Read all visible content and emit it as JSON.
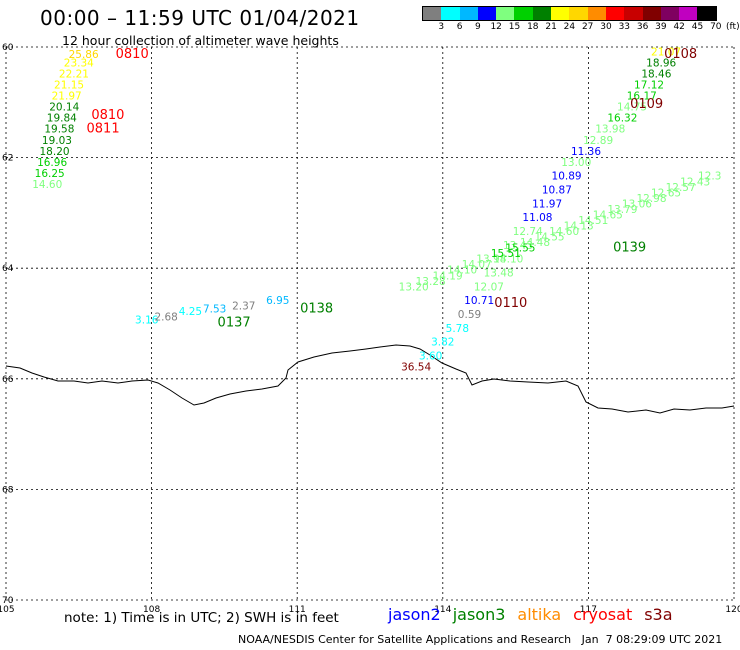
{
  "header": {
    "title": "00:00 – 11:59 UTC 01/04/2021",
    "subtitle": "12 hour collection of altimeter wave heights"
  },
  "colorbar": {
    "unit": "(ft)",
    "colors": [
      "#7f7f7f",
      "#00ffff",
      "#00b8ff",
      "#0000ff",
      "#7fff7f",
      "#00d000",
      "#008000",
      "#ffff00",
      "#ffd700",
      "#ff8c00",
      "#ff0000",
      "#c80000",
      "#800000",
      "#7f0060",
      "#c000c0",
      "#000000"
    ],
    "labels": [
      "3",
      "6",
      "9",
      "12",
      "15",
      "18",
      "21",
      "24",
      "27",
      "30",
      "33",
      "36",
      "39",
      "42",
      "45",
      "70"
    ]
  },
  "axes": {
    "y_ticks": [
      "60",
      "62",
      "64",
      "66",
      "68",
      "70"
    ],
    "x_ticks": [
      "105",
      "108",
      "111",
      "114",
      "117",
      "120"
    ]
  },
  "footer": {
    "note": "note: 1) Time is in UTC; 2) SWH is in feet",
    "credit": "NOAA/NESDIS Center for Satellite Applications and Research   Jan  7 08:29:09 UTC 2021"
  },
  "legend": [
    {
      "name": "jason2",
      "color": "#0000ff"
    },
    {
      "name": "jason3",
      "color": "#008000"
    },
    {
      "name": "altika",
      "color": "#ff8c00"
    },
    {
      "name": "cryosat",
      "color": "#ff0000"
    },
    {
      "name": "s3a",
      "color": "#800000"
    }
  ],
  "chart_data": {
    "type": "scatter",
    "title": "00:00 – 11:59 UTC 01/04/2021",
    "subtitle": "12 hour collection of altimeter wave heights",
    "xlim": [
      105,
      120
    ],
    "ylim": [
      60,
      70
    ],
    "y_inverted": true,
    "grid": true,
    "legend_position": "bottom",
    "colormap": "value-to-color by colorbar breakpoints",
    "pass_labels": [
      {
        "text": "0810",
        "lon": 107.6,
        "lat": 60.2,
        "color": "#ff0000"
      },
      {
        "text": "0810",
        "lon": 107.1,
        "lat": 61.3,
        "color": "#ff0000"
      },
      {
        "text": "0811",
        "lon": 107.0,
        "lat": 61.55,
        "color": "#ff0000"
      },
      {
        "text": "0108",
        "lon": 118.9,
        "lat": 60.2,
        "color": "#800000"
      },
      {
        "text": "0109",
        "lon": 118.2,
        "lat": 61.1,
        "color": "#800000"
      },
      {
        "text": "0139",
        "lon": 117.85,
        "lat": 63.7,
        "color": "#008000"
      },
      {
        "text": "0110",
        "lon": 115.4,
        "lat": 64.7,
        "color": "#800000"
      },
      {
        "text": "0137",
        "lon": 109.7,
        "lat": 65.05,
        "color": "#008000"
      },
      {
        "text": "0138",
        "lon": 111.4,
        "lat": 64.8,
        "color": "#008000"
      }
    ],
    "points": [
      {
        "lon": 106.6,
        "lat": 60.2,
        "value": 25.86
      },
      {
        "lon": 106.5,
        "lat": 60.35,
        "value": 23.34
      },
      {
        "lon": 106.4,
        "lat": 60.55,
        "value": 22.21
      },
      {
        "lon": 106.3,
        "lat": 60.75,
        "value": 21.15
      },
      {
        "lon": 106.25,
        "lat": 60.95,
        "value": 21.97
      },
      {
        "lon": 106.2,
        "lat": 61.15,
        "value": 20.14
      },
      {
        "lon": 106.15,
        "lat": 61.35,
        "value": 19.84
      },
      {
        "lon": 106.1,
        "lat": 61.55,
        "value": 19.58
      },
      {
        "lon": 106.05,
        "lat": 61.75,
        "value": 19.03
      },
      {
        "lon": 106.0,
        "lat": 61.95,
        "value": 18.2
      },
      {
        "lon": 105.95,
        "lat": 62.15,
        "value": 16.96
      },
      {
        "lon": 105.9,
        "lat": 62.35,
        "value": 16.25
      },
      {
        "lon": 105.85,
        "lat": 62.55,
        "value": 14.6
      },
      {
        "lon": 118.6,
        "lat": 60.15,
        "value": 21.07
      },
      {
        "lon": 118.5,
        "lat": 60.35,
        "value": 18.96
      },
      {
        "lon": 118.4,
        "lat": 60.55,
        "value": 18.46
      },
      {
        "lon": 118.25,
        "lat": 60.75,
        "value": 17.12
      },
      {
        "lon": 118.1,
        "lat": 60.95,
        "value": 16.17
      },
      {
        "lon": 117.9,
        "lat": 61.15,
        "value": 14.75
      },
      {
        "lon": 117.7,
        "lat": 61.35,
        "value": 16.32
      },
      {
        "lon": 117.45,
        "lat": 61.55,
        "value": 13.98
      },
      {
        "lon": 117.2,
        "lat": 61.75,
        "value": 12.89
      },
      {
        "lon": 116.95,
        "lat": 61.95,
        "value": 11.36
      },
      {
        "lon": 116.75,
        "lat": 62.15,
        "value": 13.0
      },
      {
        "lon": 116.55,
        "lat": 62.4,
        "value": 10.89
      },
      {
        "lon": 116.35,
        "lat": 62.65,
        "value": 10.87
      },
      {
        "lon": 116.15,
        "lat": 62.9,
        "value": 11.97
      },
      {
        "lon": 115.95,
        "lat": 63.15,
        "value": 11.08
      },
      {
        "lon": 115.75,
        "lat": 63.4,
        "value": 12.74
      },
      {
        "lon": 115.55,
        "lat": 63.65,
        "value": 13.43
      },
      {
        "lon": 115.35,
        "lat": 63.9,
        "value": 14.1
      },
      {
        "lon": 115.15,
        "lat": 64.15,
        "value": 13.48
      },
      {
        "lon": 114.95,
        "lat": 64.4,
        "value": 12.07
      },
      {
        "lon": 114.75,
        "lat": 64.65,
        "value": 10.71
      },
      {
        "lon": 114.55,
        "lat": 64.9,
        "value": 0.59
      },
      {
        "lon": 114.3,
        "lat": 65.15,
        "value": 5.78
      },
      {
        "lon": 114.0,
        "lat": 65.4,
        "value": 3.82
      },
      {
        "lon": 113.75,
        "lat": 65.65,
        "value": 3.6
      },
      {
        "lon": 113.45,
        "lat": 65.85,
        "value": 36.54
      },
      {
        "lon": 113.4,
        "lat": 64.4,
        "value": 13.2
      },
      {
        "lon": 113.75,
        "lat": 64.3,
        "value": 13.28
      },
      {
        "lon": 114.1,
        "lat": 64.2,
        "value": 14.19
      },
      {
        "lon": 114.4,
        "lat": 64.1,
        "value": 14.1
      },
      {
        "lon": 114.7,
        "lat": 64.0,
        "value": 14.07
      },
      {
        "lon": 115.0,
        "lat": 63.9,
        "value": 13.98
      },
      {
        "lon": 115.3,
        "lat": 63.8,
        "value": 15.51
      },
      {
        "lon": 115.6,
        "lat": 63.7,
        "value": 15.55
      },
      {
        "lon": 115.9,
        "lat": 63.6,
        "value": 14.48
      },
      {
        "lon": 116.2,
        "lat": 63.5,
        "value": 14.55
      },
      {
        "lon": 116.5,
        "lat": 63.4,
        "value": 14.6
      },
      {
        "lon": 116.8,
        "lat": 63.3,
        "value": 14.13
      },
      {
        "lon": 117.1,
        "lat": 63.2,
        "value": 14.51
      },
      {
        "lon": 117.4,
        "lat": 63.1,
        "value": 14.65
      },
      {
        "lon": 117.7,
        "lat": 63.0,
        "value": 13.79
      },
      {
        "lon": 118.0,
        "lat": 62.9,
        "value": 13.06
      },
      {
        "lon": 118.3,
        "lat": 62.8,
        "value": 12.98
      },
      {
        "lon": 118.6,
        "lat": 62.7,
        "value": 12.65
      },
      {
        "lon": 118.9,
        "lat": 62.6,
        "value": 12.57
      },
      {
        "lon": 119.2,
        "lat": 62.5,
        "value": 12.43
      },
      {
        "lon": 119.5,
        "lat": 62.4,
        "value": 12.3
      },
      {
        "lon": 107.9,
        "lat": 65.0,
        "value": 3.16
      },
      {
        "lon": 108.3,
        "lat": 64.95,
        "value": 2.68
      },
      {
        "lon": 108.8,
        "lat": 64.85,
        "value": 4.25
      },
      {
        "lon": 109.3,
        "lat": 64.8,
        "value": 7.53
      },
      {
        "lon": 109.9,
        "lat": 64.75,
        "value": 2.37
      },
      {
        "lon": 110.6,
        "lat": 64.65,
        "value": 6.95
      }
    ]
  }
}
